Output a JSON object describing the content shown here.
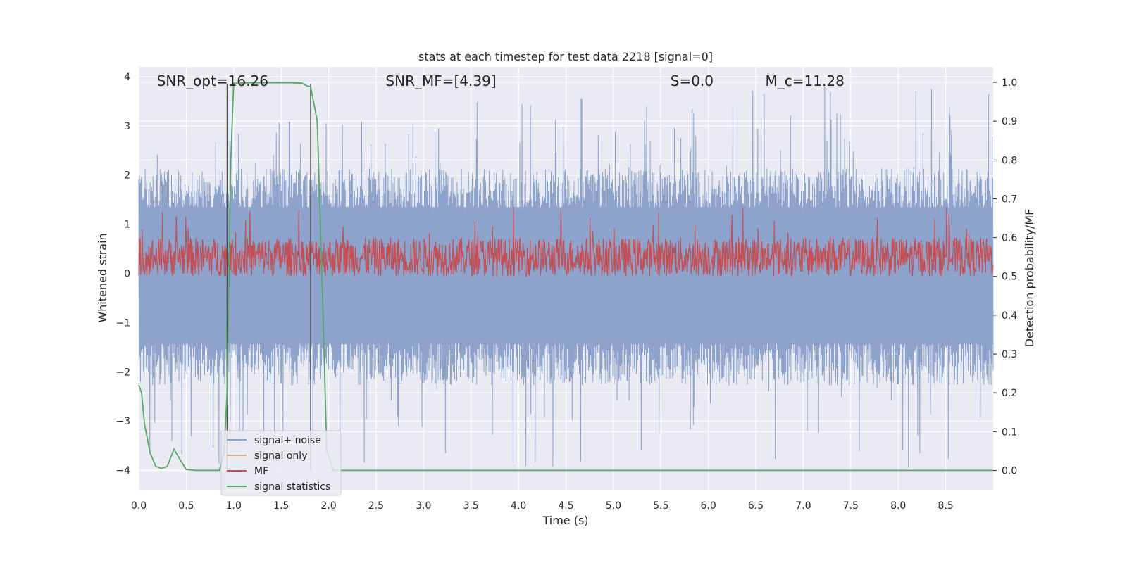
{
  "chart_data": {
    "type": "line",
    "title": "stats at each timestep for test data 2218 [signal=0]",
    "xlabel": "Time (s)",
    "ylabel": "Whitened strain",
    "y2label": "Detection probability/MF",
    "xlim": [
      0,
      9.0
    ],
    "ylim": [
      -4.4,
      4.2
    ],
    "y2lim": [
      -0.05,
      1.04
    ],
    "xticks": [
      0.0,
      0.5,
      1.0,
      1.5,
      2.0,
      2.5,
      3.0,
      3.5,
      4.0,
      4.5,
      5.0,
      5.5,
      6.0,
      6.5,
      7.0,
      7.5,
      8.0,
      8.5
    ],
    "xtick_labels": [
      "0.0",
      "0.5",
      "1.0",
      "1.5",
      "2.0",
      "2.5",
      "3.0",
      "3.5",
      "4.0",
      "4.5",
      "5.0",
      "5.5",
      "6.0",
      "6.5",
      "7.0",
      "7.5",
      "8.0",
      "8.5"
    ],
    "yticks": [
      4,
      3,
      2,
      1,
      0,
      -1,
      -2,
      -3,
      -4
    ],
    "ytick_labels": [
      "4",
      "3",
      "2",
      "1",
      "0",
      "−1",
      "−2",
      "−3",
      "−4"
    ],
    "y2ticks": [
      1.0,
      0.9,
      0.8,
      0.7,
      0.6,
      0.5,
      0.4,
      0.3,
      0.2,
      0.1,
      0.0
    ],
    "y2tick_labels": [
      "1.0",
      "0.9",
      "0.8",
      "0.7",
      "0.6",
      "0.5",
      "0.4",
      "0.3",
      "0.2",
      "0.1",
      "0.0"
    ],
    "grid": true,
    "legend_position": "lower-left",
    "annotations": [
      {
        "id": "snr-opt",
        "text": "SNR_opt=16.26",
        "x": 0.19,
        "y": 3.9
      },
      {
        "id": "snr-mf",
        "text": "SNR_MF=[4.39]",
        "x": 2.6,
        "y": 3.9
      },
      {
        "id": "s-value",
        "text": "S=0.0",
        "x": 5.6,
        "y": 3.9
      },
      {
        "id": "mc-value",
        "text": "M_c=11.28",
        "x": 6.6,
        "y": 3.9
      }
    ],
    "vertical_lines": [
      0.93,
      1.81
    ],
    "series": [
      {
        "name": "signal+ noise",
        "color": "#8da3cc",
        "kind": "noise",
        "axis": "left",
        "center": 0.0,
        "typical_range": [
          -1.6,
          1.5
        ],
        "range": [
          -4.0,
          3.8
        ]
      },
      {
        "name": "signal only",
        "color": "#e8a98f",
        "kind": "flat",
        "axis": "left",
        "values": [
          0.0
        ]
      },
      {
        "name": "MF",
        "color": "#c44e52",
        "kind": "noise",
        "axis": "right",
        "center": 0.53,
        "typical_range": [
          0.5,
          0.6
        ],
        "range": [
          0.49,
          0.68
        ]
      },
      {
        "name": "signal statistics",
        "color": "#55a868",
        "kind": "line",
        "axis": "right",
        "x": [
          0.0,
          0.03,
          0.06,
          0.12,
          0.18,
          0.24,
          0.3,
          0.37,
          0.43,
          0.5,
          0.6,
          0.75,
          0.85,
          0.9,
          0.93,
          0.97,
          1.0,
          1.2,
          1.4,
          1.6,
          1.72,
          1.78,
          1.81,
          1.88,
          1.93,
          1.98,
          2.05,
          2.2,
          3.0,
          4.0,
          5.0,
          6.0,
          7.0,
          8.0,
          9.0
        ],
        "y": [
          0.22,
          0.2,
          0.12,
          0.045,
          0.01,
          0.005,
          0.01,
          0.055,
          0.03,
          0.002,
          0.0,
          0.0,
          0.0,
          0.05,
          0.2,
          0.8,
          0.998,
          0.999,
          0.999,
          0.999,
          0.998,
          0.99,
          0.99,
          0.9,
          0.5,
          0.05,
          0.0,
          0.0,
          0.0,
          0.0,
          0.0,
          0.0,
          0.0,
          0.0,
          0.0
        ]
      }
    ]
  }
}
